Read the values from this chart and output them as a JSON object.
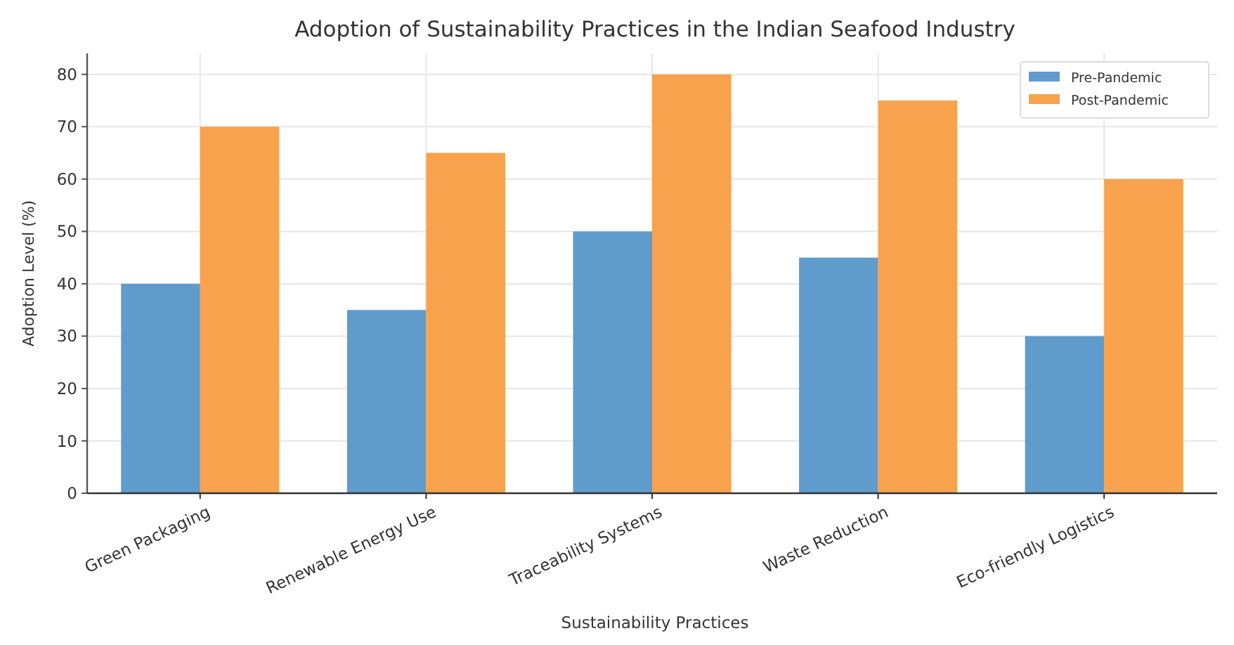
{
  "chart_data": {
    "type": "bar",
    "title": "Adoption of Sustainability Practices in the Indian Seafood Industry",
    "xlabel": "Sustainability Practices",
    "ylabel": "Adoption Level (%)",
    "categories": [
      "Green Packaging",
      "Renewable Energy Use",
      "Traceability Systems",
      "Waste Reduction",
      "Eco-friendly Logistics"
    ],
    "series": [
      {
        "name": "Pre-Pandemic",
        "color": "#5f9ccc",
        "values": [
          40,
          35,
          50,
          45,
          30
        ]
      },
      {
        "name": "Post-Pandemic",
        "color": "#f9a24e",
        "values": [
          70,
          65,
          80,
          75,
          60
        ]
      }
    ],
    "ylim": [
      0,
      84
    ],
    "yticks": [
      0,
      10,
      20,
      30,
      40,
      50,
      60,
      70,
      80
    ],
    "grid": true,
    "legend": "top right"
  }
}
